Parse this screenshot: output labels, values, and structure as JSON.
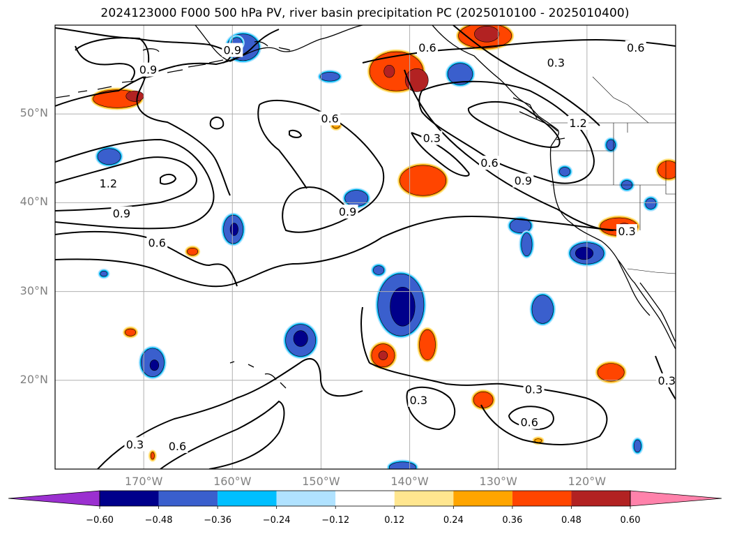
{
  "title": "2024123000 F000 500 hPa PV, river basin precipitation PC (2025010100 - 2025010400)",
  "lat_labels": [
    "50°N",
    "40°N",
    "30°N",
    "20°N"
  ],
  "lon_labels": [
    "170°W",
    "160°W",
    "150°W",
    "140°W",
    "130°W",
    "120°W"
  ],
  "map_extent": {
    "lon_min": -180,
    "lon_max": -110,
    "lat_min": 10,
    "lat_max": 60
  },
  "grid_lons": [
    -170,
    -160,
    -150,
    -140,
    -130,
    -120
  ],
  "grid_lats": [
    50,
    40,
    30,
    20
  ],
  "colorbar": {
    "colors": [
      "#9b30d0",
      "#00008b",
      "#3a5fcd",
      "#00bfff",
      "#b0e2ff",
      "#ffffff",
      "#ffe68f",
      "#ffa500",
      "#ff4500",
      "#b22222",
      "#ff82ab"
    ],
    "tick_labels": [
      "−0.60",
      "−0.48",
      "−0.36",
      "−0.24",
      "−0.12",
      "0.12",
      "0.24",
      "0.36",
      "0.48",
      "0.60"
    ]
  },
  "contour_labels": [
    {
      "text": "0.9",
      "lon": -169.5,
      "lat": 55.0
    },
    {
      "text": "0.9",
      "lon": -160.0,
      "lat": 57.2
    },
    {
      "text": "0.6",
      "lon": -138.0,
      "lat": 57.5
    },
    {
      "text": "0.6",
      "lon": -114.5,
      "lat": 57.5
    },
    {
      "text": "0.3",
      "lon": -123.5,
      "lat": 55.8
    },
    {
      "text": "0.6",
      "lon": -149.0,
      "lat": 49.5
    },
    {
      "text": "1.2",
      "lon": -121.0,
      "lat": 49.0
    },
    {
      "text": "0.3",
      "lon": -137.5,
      "lat": 47.3
    },
    {
      "text": "0.6",
      "lon": -131.0,
      "lat": 44.5
    },
    {
      "text": "0.9",
      "lon": -127.2,
      "lat": 42.5
    },
    {
      "text": "1.2",
      "lon": -174.0,
      "lat": 42.2
    },
    {
      "text": "0.9",
      "lon": -147.0,
      "lat": 39.0
    },
    {
      "text": "0.9",
      "lon": -172.5,
      "lat": 38.8
    },
    {
      "text": "0.3",
      "lon": -115.5,
      "lat": 36.8
    },
    {
      "text": "0.6",
      "lon": -168.5,
      "lat": 35.5
    },
    {
      "text": "0.3",
      "lon": -139.0,
      "lat": 17.8
    },
    {
      "text": "0.3",
      "lon": -126.0,
      "lat": 19.0
    },
    {
      "text": "0.3",
      "lon": -111.0,
      "lat": 20.0
    },
    {
      "text": "0.6",
      "lon": -126.5,
      "lat": 15.3
    },
    {
      "text": "0.3",
      "lon": -171.0,
      "lat": 12.8
    },
    {
      "text": "0.6",
      "lon": -166.2,
      "lat": 12.6
    }
  ],
  "pc_blobs": [
    {
      "lon": -173,
      "lat": 51.7,
      "rx": 2.7,
      "ry": 1.0,
      "level": 3
    },
    {
      "lon": -171.0,
      "lat": 52.0,
      "rx": 1.0,
      "ry": 0.6,
      "level": 4
    },
    {
      "lon": -158.8,
      "lat": 57.5,
      "rx": 1.8,
      "ry": 1.5,
      "level": -2
    },
    {
      "lon": -159.5,
      "lat": 58.0,
      "rx": 0.6,
      "ry": 0.6,
      "level": -3
    },
    {
      "lon": -173.9,
      "lat": 45.2,
      "rx": 1.3,
      "ry": 0.9,
      "level": -2
    },
    {
      "lon": -149.0,
      "lat": 54.2,
      "rx": 1.1,
      "ry": 0.5,
      "level": -2
    },
    {
      "lon": -159.9,
      "lat": 37.0,
      "rx": 1.1,
      "ry": 1.6,
      "level": -2
    },
    {
      "lon": -159.8,
      "lat": 37.0,
      "rx": 0.45,
      "ry": 0.7,
      "level": -4
    },
    {
      "lon": -146.0,
      "lat": 40.5,
      "rx": 1.3,
      "ry": 0.9,
      "level": -2
    },
    {
      "lon": -141.5,
      "lat": 54.8,
      "rx": 3.0,
      "ry": 2.2,
      "level": 3
    },
    {
      "lon": -139.2,
      "lat": 53.8,
      "rx": 1.3,
      "ry": 1.3,
      "level": 4
    },
    {
      "lon": -142.3,
      "lat": 54.8,
      "rx": 0.6,
      "ry": 0.7,
      "level": 4
    },
    {
      "lon": -131.5,
      "lat": 58.8,
      "rx": 3.0,
      "ry": 1.4,
      "level": 3
    },
    {
      "lon": -131.3,
      "lat": 59.0,
      "rx": 1.4,
      "ry": 0.9,
      "level": 4
    },
    {
      "lon": -134.3,
      "lat": 54.5,
      "rx": 1.4,
      "ry": 1.2,
      "level": -2
    },
    {
      "lon": -138.5,
      "lat": 42.5,
      "rx": 2.6,
      "ry": 1.7,
      "level": 3
    },
    {
      "lon": -127.5,
      "lat": 37.4,
      "rx": 1.2,
      "ry": 0.8,
      "level": -2
    },
    {
      "lon": -126.8,
      "lat": 35.3,
      "rx": 0.6,
      "ry": 1.3,
      "level": -2
    },
    {
      "lon": -120.0,
      "lat": 34.3,
      "rx": 1.9,
      "ry": 1.2,
      "level": -2
    },
    {
      "lon": -120.3,
      "lat": 34.3,
      "rx": 1.0,
      "ry": 0.7,
      "level": -4
    },
    {
      "lon": -116.4,
      "lat": 37.3,
      "rx": 2.1,
      "ry": 1.0,
      "level": 3
    },
    {
      "lon": -115.8,
      "lat": 37.1,
      "rx": 0.8,
      "ry": 0.6,
      "level": 4
    },
    {
      "lon": -141.0,
      "lat": 28.5,
      "rx": 2.6,
      "ry": 3.5,
      "level": -2
    },
    {
      "lon": -140.8,
      "lat": 28.3,
      "rx": 1.4,
      "ry": 2.2,
      "level": -4
    },
    {
      "lon": -143.5,
      "lat": 32.4,
      "rx": 0.6,
      "ry": 0.5,
      "level": -2
    },
    {
      "lon": -152.3,
      "lat": 24.5,
      "rx": 1.7,
      "ry": 1.8,
      "level": -2
    },
    {
      "lon": -152.3,
      "lat": 24.7,
      "rx": 0.8,
      "ry": 0.9,
      "level": -4
    },
    {
      "lon": -169.0,
      "lat": 22.0,
      "rx": 1.3,
      "ry": 1.6,
      "level": -2
    },
    {
      "lon": -168.8,
      "lat": 21.7,
      "rx": 0.5,
      "ry": 0.6,
      "level": -4
    },
    {
      "lon": -143.0,
      "lat": 22.8,
      "rx": 1.3,
      "ry": 1.3,
      "level": 3
    },
    {
      "lon": -143.0,
      "lat": 22.8,
      "rx": 0.5,
      "ry": 0.5,
      "level": 4
    },
    {
      "lon": -138.0,
      "lat": 24.0,
      "rx": 0.9,
      "ry": 1.7,
      "level": 3
    },
    {
      "lon": -125.0,
      "lat": 28.0,
      "rx": 1.2,
      "ry": 1.6,
      "level": -2
    },
    {
      "lon": -117.3,
      "lat": 20.9,
      "rx": 1.5,
      "ry": 1.0,
      "level": 3
    },
    {
      "lon": -131.7,
      "lat": 17.8,
      "rx": 1.1,
      "ry": 0.9,
      "level": 3
    },
    {
      "lon": -140.8,
      "lat": 10.2,
      "rx": 1.5,
      "ry": 0.6,
      "level": -2
    },
    {
      "lon": -148.3,
      "lat": 48.7,
      "rx": 0.4,
      "ry": 0.3,
      "level": 2
    },
    {
      "lon": -171.5,
      "lat": 25.4,
      "rx": 0.6,
      "ry": 0.4,
      "level": 3
    },
    {
      "lon": -164.5,
      "lat": 34.5,
      "rx": 0.6,
      "ry": 0.4,
      "level": 3
    },
    {
      "lon": -110.8,
      "lat": 43.7,
      "rx": 1.2,
      "ry": 1.0,
      "level": 3
    },
    {
      "lon": -122.5,
      "lat": 43.5,
      "rx": 0.6,
      "ry": 0.5,
      "level": -2
    },
    {
      "lon": -115.5,
      "lat": 42.0,
      "rx": 0.6,
      "ry": 0.5,
      "level": -2
    },
    {
      "lon": -117.3,
      "lat": 46.5,
      "rx": 0.5,
      "ry": 0.6,
      "level": -2
    },
    {
      "lon": -112.8,
      "lat": 39.9,
      "rx": 0.6,
      "ry": 0.6,
      "level": -2
    },
    {
      "lon": -114.3,
      "lat": 12.6,
      "rx": 0.4,
      "ry": 0.7,
      "level": -2
    },
    {
      "lon": -174.5,
      "lat": 32.0,
      "rx": 0.4,
      "ry": 0.3,
      "level": -2
    },
    {
      "lon": -169.0,
      "lat": 11.5,
      "rx": 0.2,
      "ry": 0.4,
      "level": 3
    },
    {
      "lon": -125.5,
      "lat": 13.2,
      "rx": 0.4,
      "ry": 0.2,
      "level": 2
    }
  ]
}
